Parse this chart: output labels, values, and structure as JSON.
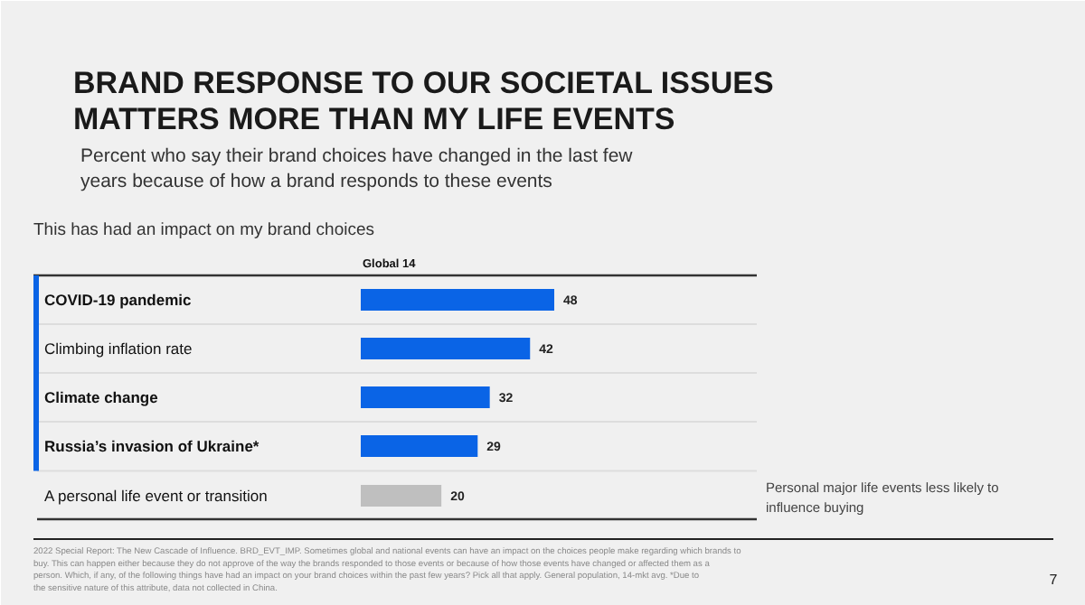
{
  "chart_data": {
    "type": "bar",
    "orientation": "horizontal",
    "data_labels": true,
    "title": "BRAND RESPONSE TO OUR SOCIETAL ISSUES MATTERS MORE THAN MY LIFE EVENTS",
    "subtitle": "Percent who say their brand choices have changed in the last few years because of how a brand responds to these events",
    "categories": [
      "COVID-19 pandemic",
      "Climbing inflation rate",
      "Climate change",
      "Russia’s invasion of Ukraine*",
      "A personal life event or transition"
    ],
    "values": [
      48,
      42,
      32,
      29,
      20
    ],
    "colors": [
      "#0a64e6",
      "#0a64e6",
      "#0a64e6",
      "#0a64e6",
      "#bfbfbf"
    ],
    "annotations": [
      "This has had an impact on my brand choices",
      "Global 14",
      "Personal major life events less likely to influence buying",
      "2022 Special Report: The New Cascade of Influence. BRD_EVT_IMP. Sometimes global and national events can have an impact on the choices people make regarding which brands to buy. This can happen either because they do not approve of the way the brands responded to those events or because of how those events have changed or affected them as a person. Which, if any, of the following things have had an impact on your brand choices within the past few years? Pick all that apply. General population, 14-mkt avg. *Due to the sensitive nature of this attribute, data not collected in China.",
      "7"
    ]
  }
}
